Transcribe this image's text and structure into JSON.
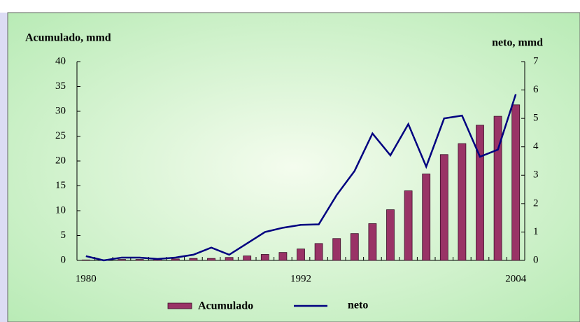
{
  "chart_data": {
    "type": "bar-line",
    "y_label": "Acumulado, mmd",
    "y2_label": "neto, mmd",
    "categories": [
      "1980",
      null,
      null,
      null,
      null,
      null,
      null,
      null,
      null,
      null,
      null,
      null,
      "1992",
      null,
      null,
      null,
      null,
      null,
      null,
      null,
      null,
      null,
      null,
      null,
      "2004"
    ],
    "series": [
      {
        "name": "Acumulado",
        "type": "bar",
        "color": "#993366",
        "axis": "y",
        "values": [
          0.1,
          0.1,
          0.2,
          0.2,
          0.2,
          0.3,
          0.4,
          0.4,
          0.6,
          0.9,
          1.2,
          1.6,
          2.3,
          3.4,
          4.4,
          5.4,
          7.4,
          10.2,
          14,
          17.4,
          21.3,
          23.5,
          27.2,
          29,
          31.3
        ]
      },
      {
        "name": "neto",
        "type": "line",
        "color": "#000080",
        "axis": "y2",
        "values": [
          0.15,
          0.0,
          0.1,
          0.1,
          0.05,
          0.1,
          0.2,
          0.45,
          0.2,
          0.6,
          1.0,
          1.15,
          1.25,
          1.27,
          2.3,
          3.15,
          4.47,
          3.7,
          4.8,
          3.3,
          5.0,
          5.1,
          3.65,
          3.9,
          5.85
        ]
      }
    ],
    "ylim": [
      0,
      40
    ],
    "yticks": [
      0,
      5,
      10,
      15,
      20,
      25,
      30,
      35,
      40
    ],
    "y2lim": [
      0,
      7
    ],
    "y2ticks": [
      0,
      1,
      2,
      3,
      4,
      5,
      6,
      7
    ]
  }
}
